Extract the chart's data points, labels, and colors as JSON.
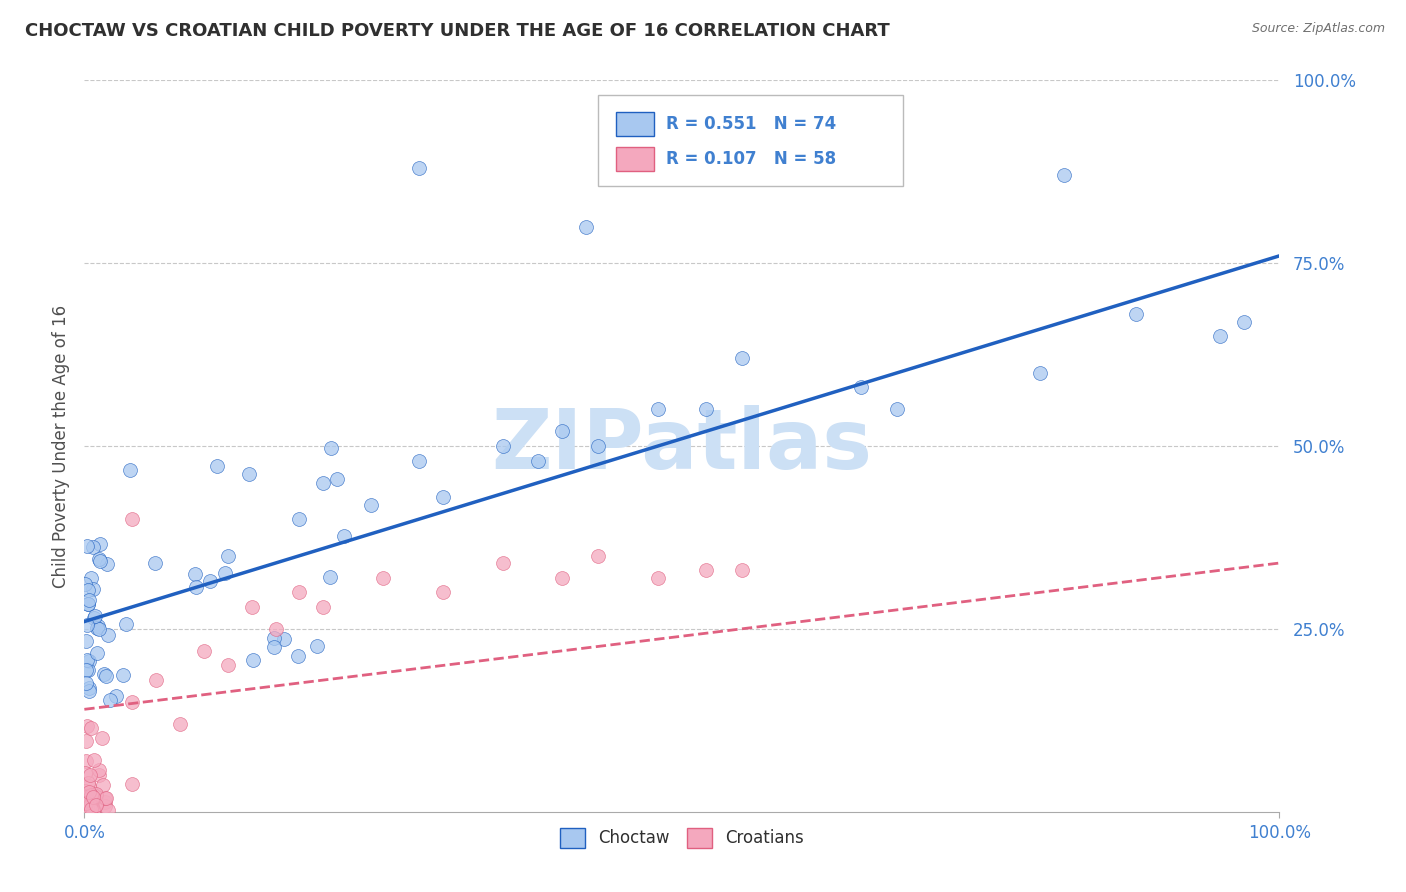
{
  "title": "CHOCTAW VS CROATIAN CHILD POVERTY UNDER THE AGE OF 16 CORRELATION CHART",
  "source": "Source: ZipAtlas.com",
  "ylabel": "Child Poverty Under the Age of 16",
  "choctaw_R": 0.551,
  "choctaw_N": 74,
  "croatian_R": 0.107,
  "croatian_N": 58,
  "choctaw_color": "#a8c8f0",
  "croatian_color": "#f4a8be",
  "choctaw_line_color": "#2060c0",
  "croatian_line_color": "#e06080",
  "title_color": "#303030",
  "source_color": "#707070",
  "axis_label_color": "#4080d0",
  "background_color": "#ffffff",
  "grid_color": "#c8c8c8",
  "watermark_text": "ZIPatlas",
  "watermark_color": "#cce0f5",
  "choctaw_line_intercept": 0.26,
  "choctaw_line_slope": 0.5,
  "croatian_line_intercept": 0.14,
  "croatian_line_slope": 0.2
}
